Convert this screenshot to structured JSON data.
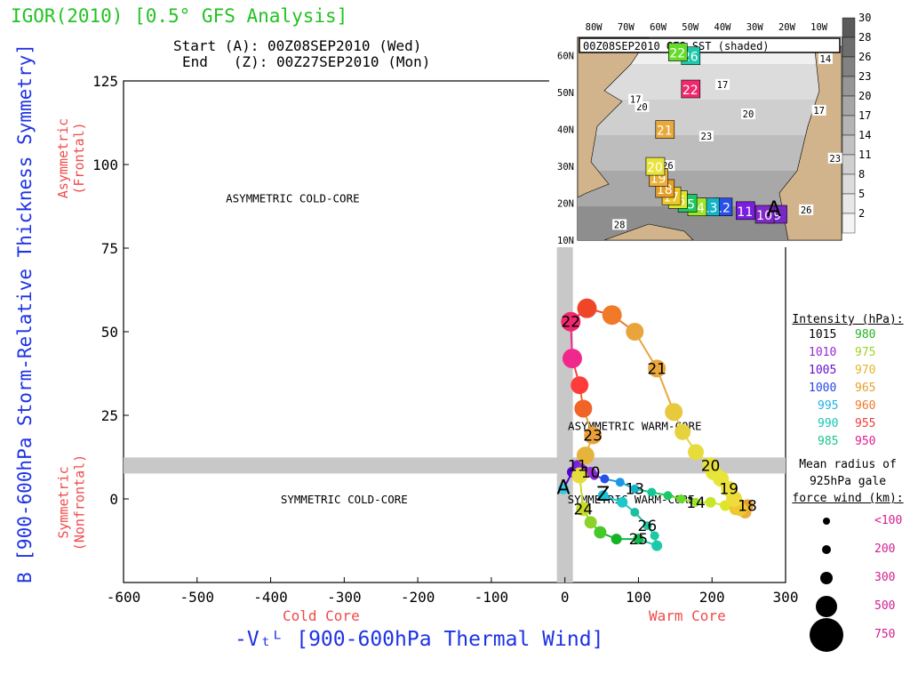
{
  "header": {
    "title": "IGOR(2010) [0.5° GFS Analysis]",
    "start_label": "Start (A): 00Z08SEP2010 (Wed)",
    "end_label": "End   (Z): 00Z27SEP2010 (Mon)"
  },
  "axes": {
    "ylabel": "B [900-600hPa Storm-Relative Thickness Symmetry]",
    "y_top_core": "Asymmetric\n(Frontal)",
    "y_bottom_core": "Symmetric\n(Nonfrontal)",
    "xlabel": "-Vₜᴸ [900-600hPa Thermal Wind]",
    "x_left_core": "Cold Core",
    "x_right_core": "Warm Core"
  },
  "chart_data": [
    {
      "type": "line",
      "xlim": [
        -600,
        300
      ],
      "ylim": [
        -25,
        125
      ],
      "x_ticks": [
        -600,
        -500,
        -400,
        -300,
        -200,
        -100,
        0,
        100,
        200,
        300
      ],
      "x_tick_labels": [
        "-600",
        "-500",
        "-400",
        "-300",
        "-200",
        "-100",
        "0",
        "100",
        "200",
        "300"
      ],
      "y_ticks": [
        0,
        25,
        50,
        75,
        100,
        125
      ],
      "y_tick_labels": [
        "0",
        "25",
        "50",
        "75",
        "100",
        "125"
      ],
      "grid": false,
      "reference_lines": {
        "x": 0,
        "y": 10
      },
      "region_labels": [
        {
          "text": "ASYMMETRIC COLD-CORE",
          "x": -370,
          "y": 90
        },
        {
          "text": "ASYMMETRIC WARM-CORE",
          "x": 95,
          "y": 22
        },
        {
          "text": "SYMMETRIC COLD-CORE",
          "x": -300,
          "y": 0
        },
        {
          "text": "SYMMETRIC WARM-CORE",
          "x": 90,
          "y": 0
        }
      ],
      "track": [
        {
          "x": -2,
          "y": 3,
          "r": 6,
          "c": "#32c8e6",
          "label": "A"
        },
        {
          "x": 10,
          "y": 8,
          "r": 6,
          "c": "#5a00d2"
        },
        {
          "x": 17,
          "y": 10,
          "r": 6,
          "c": "#7a1ee0",
          "label": "11"
        },
        {
          "x": 22,
          "y": 9,
          "r": 6,
          "c": "#8228dc"
        },
        {
          "x": 28,
          "y": 8,
          "r": 6,
          "c": "#9628dc"
        },
        {
          "x": 35,
          "y": 8,
          "r": 6,
          "c": "#a032dc",
          "label": "10"
        },
        {
          "x": 40,
          "y": 7,
          "r": 5,
          "c": "#8c28d2"
        },
        {
          "x": 54,
          "y": 6,
          "r": 5,
          "c": "#2850e6"
        },
        {
          "x": 75,
          "y": 5,
          "r": 5,
          "c": "#1e96e6"
        },
        {
          "x": 95,
          "y": 3,
          "r": 5,
          "c": "#14b4c8",
          "label": "13"
        },
        {
          "x": 118,
          "y": 2,
          "r": 5,
          "c": "#14c896"
        },
        {
          "x": 140,
          "y": 1,
          "r": 5,
          "c": "#1ec864"
        },
        {
          "x": 158,
          "y": 0,
          "r": 5,
          "c": "#64dc28"
        },
        {
          "x": 178,
          "y": -1,
          "r": 5,
          "c": "#a0e628",
          "label": "14"
        },
        {
          "x": 198,
          "y": -1,
          "r": 6,
          "c": "#c8e628"
        },
        {
          "x": 218,
          "y": -2,
          "r": 6,
          "c": "#dce628"
        },
        {
          "x": 232,
          "y": -3,
          "r": 7,
          "c": "#f0c828"
        },
        {
          "x": 242,
          "y": -3,
          "r": 7,
          "c": "#e6a028"
        },
        {
          "x": 248,
          "y": -2,
          "r": 7,
          "c": "#e6a028",
          "label": "18"
        },
        {
          "x": 245,
          "y": -4,
          "r": 7,
          "c": "#eab03a"
        },
        {
          "x": 238,
          "y": -3,
          "r": 8,
          "c": "#f0c832"
        },
        {
          "x": 230,
          "y": 0,
          "r": 9,
          "c": "#eedc3c"
        },
        {
          "x": 223,
          "y": 3,
          "r": 9,
          "c": "#ece03a",
          "label": "19"
        },
        {
          "x": 212,
          "y": 6,
          "r": 9,
          "c": "#e8e43a"
        },
        {
          "x": 202,
          "y": 8,
          "r": 9,
          "c": "#e6e638"
        },
        {
          "x": 198,
          "y": 10,
          "r": 9,
          "c": "#e6e038",
          "label": "20"
        },
        {
          "x": 178,
          "y": 14,
          "r": 9,
          "c": "#e6dc3c"
        },
        {
          "x": 160,
          "y": 20,
          "r": 9,
          "c": "#e6d23c"
        },
        {
          "x": 148,
          "y": 26,
          "r": 10,
          "c": "#e8c83c"
        },
        {
          "x": 125,
          "y": 39,
          "r": 10,
          "c": "#e8a83c",
          "label": "21"
        },
        {
          "x": 95,
          "y": 50,
          "r": 10,
          "c": "#eaa43c"
        },
        {
          "x": 64,
          "y": 55,
          "r": 11,
          "c": "#f07a28"
        },
        {
          "x": 30,
          "y": 57,
          "r": 11,
          "c": "#f04628"
        },
        {
          "x": 8,
          "y": 53,
          "r": 11,
          "c": "#f0286e",
          "label": "22"
        },
        {
          "x": 10,
          "y": 42,
          "r": 11,
          "c": "#f0288c"
        },
        {
          "x": 20,
          "y": 34,
          "r": 10,
          "c": "#ff3c3c"
        },
        {
          "x": 25,
          "y": 27,
          "r": 10,
          "c": "#f06428"
        },
        {
          "x": 38,
          "y": 19,
          "r": 10,
          "c": "#e8a03c",
          "label": "23"
        },
        {
          "x": 28,
          "y": 13,
          "r": 10,
          "c": "#e6b43c"
        },
        {
          "x": 20,
          "y": 7,
          "r": 9,
          "c": "#e6dc3c"
        },
        {
          "x": 25,
          "y": -3,
          "r": 8,
          "c": "#c8dc28",
          "label": "24"
        },
        {
          "x": 35,
          "y": -7,
          "r": 7,
          "c": "#8cd228"
        },
        {
          "x": 48,
          "y": -10,
          "r": 7,
          "c": "#46c828"
        },
        {
          "x": 70,
          "y": -12,
          "r": 6,
          "c": "#14b428"
        },
        {
          "x": 100,
          "y": -12,
          "r": 6,
          "c": "#14b450",
          "label": "25"
        },
        {
          "x": 125,
          "y": -14,
          "r": 6,
          "c": "#1ec8aa"
        },
        {
          "x": 122,
          "y": -11,
          "r": 5,
          "c": "#1ec8a0"
        },
        {
          "x": 112,
          "y": -8,
          "r": 5,
          "c": "#1ec8a0",
          "label": "26"
        },
        {
          "x": 95,
          "y": -4,
          "r": 5,
          "c": "#1ebea0"
        },
        {
          "x": 78,
          "y": -1,
          "r": 6,
          "c": "#1ec8c8"
        },
        {
          "x": 52,
          "y": 1,
          "r": 6,
          "c": "#14c8dc",
          "label": "Z"
        }
      ]
    },
    {
      "type": "map",
      "title": "00Z08SEP2010 GFS SST (shaded)",
      "x_tick_labels": [
        "80W",
        "70W",
        "60W",
        "50W",
        "40W",
        "30W",
        "20W",
        "10W"
      ],
      "y_tick_labels": [
        "60N",
        "50N",
        "40N",
        "30N",
        "20N",
        "10N"
      ],
      "lonlim": [
        -85,
        -3
      ],
      "latlim": [
        10,
        65
      ],
      "contour_labels": [
        {
          "text": "17",
          "lon": -40,
          "lat": 52
        },
        {
          "text": "20",
          "lon": -32,
          "lat": 44
        },
        {
          "text": "23",
          "lon": -45,
          "lat": 38
        },
        {
          "text": "26",
          "lon": -57,
          "lat": 30
        },
        {
          "text": "28",
          "lon": -72,
          "lat": 14
        },
        {
          "text": "17",
          "lon": -10,
          "lat": 45
        },
        {
          "text": "20",
          "lon": -65,
          "lat": 46
        },
        {
          "text": "17",
          "lon": -67,
          "lat": 48
        },
        {
          "text": "14",
          "lon": -8,
          "lat": 59
        },
        {
          "text": "23",
          "lon": -5,
          "lat": 32
        },
        {
          "text": "26",
          "lon": -14,
          "lat": 18
        }
      ],
      "track": [
        {
          "lon": -23,
          "lat": 17,
          "label": "9",
          "c": "#7828c8"
        },
        {
          "lon": -27,
          "lat": 17,
          "label": "10",
          "c": "#8228c8"
        },
        {
          "lon": -33,
          "lat": 18,
          "label": "11",
          "c": "#7a1ee0"
        },
        {
          "lon": -40,
          "lat": 19,
          "label": "12",
          "c": "#2850e6"
        },
        {
          "lon": -44,
          "lat": 19,
          "label": "13",
          "c": "#14b4c8"
        },
        {
          "lon": -48,
          "lat": 19,
          "label": "14",
          "c": "#a0e628"
        },
        {
          "lon": -51,
          "lat": 20,
          "label": "15",
          "c": "#1ec864"
        },
        {
          "lon": -54,
          "lat": 21,
          "label": "16",
          "c": "#dce628"
        },
        {
          "lon": -56,
          "lat": 22,
          "label": "17",
          "c": "#f0c828"
        },
        {
          "lon": -58,
          "lat": 24,
          "label": "18",
          "c": "#e6a028"
        },
        {
          "lon": -60,
          "lat": 27,
          "label": "19",
          "c": "#eab03a"
        },
        {
          "lon": -61,
          "lat": 30,
          "label": "20",
          "c": "#e8e43a"
        },
        {
          "lon": -58,
          "lat": 40,
          "label": "21",
          "c": "#e8a83c"
        },
        {
          "lon": -50,
          "lat": 51,
          "label": "22",
          "c": "#f0286e"
        },
        {
          "lon": -50,
          "lat": 60,
          "label": "26",
          "c": "#1ec8aa"
        },
        {
          "lon": -54,
          "lat": 61,
          "label": "22",
          "c": "#64dc28"
        }
      ],
      "colorbar": {
        "labels": [
          "30",
          "28",
          "26",
          "23",
          "20",
          "17",
          "14",
          "11",
          "8",
          "5",
          "2"
        ],
        "colors": [
          "#5a5a5a",
          "#6e6e6e",
          "#828282",
          "#969696",
          "#a6a6a6",
          "#b4b4b4",
          "#c2c2c2",
          "#d0d0d0",
          "#dcdcdc",
          "#e8e8e8",
          "#f4f4f4"
        ]
      }
    }
  ],
  "legend": {
    "title": "Intensity (hPa):",
    "rows": [
      {
        "a": "1015",
        "ac": "#000000",
        "b": "980",
        "bc": "#22b422"
      },
      {
        "a": "1010",
        "ac": "#9a28d2",
        "b": "975",
        "bc": "#a0d228"
      },
      {
        "a": "1005",
        "ac": "#6414c8",
        "b": "970",
        "bc": "#e6b428"
      },
      {
        "a": "1000",
        "ac": "#2846e6",
        "b": "965",
        "bc": "#e6a028"
      },
      {
        "a": "995",
        "ac": "#1eb4e6",
        "b": "960",
        "bc": "#f07828"
      },
      {
        "a": "990",
        "ac": "#14c8b4",
        "b": "955",
        "bc": "#f03c3c"
      },
      {
        "a": "985",
        "ac": "#14c88c",
        "b": "950",
        "bc": "#e61e8c"
      }
    ],
    "radius_title_1": "Mean radius of",
    "radius_title_2": "925hPa gale",
    "radius_title_3": "force wind (km):",
    "radius_rows": [
      {
        "label": "<100",
        "r": 4
      },
      {
        "label": "200",
        "r": 5
      },
      {
        "label": "300",
        "r": 7
      },
      {
        "label": "500",
        "r": 12
      },
      {
        "label": "750",
        "r": 19
      }
    ],
    "radius_color": "#d21e8c"
  }
}
